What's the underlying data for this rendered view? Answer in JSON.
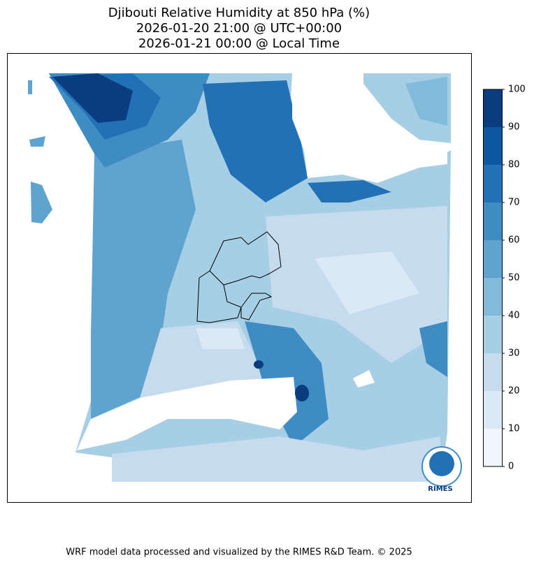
{
  "title": [
    "Djibouti Relative Humidity at 850 hPa (%)",
    "2026-01-20 21:00 @ UTC+00:00",
    "2026-01-21 00:00 @ Local Time"
  ],
  "colorbar": {
    "ticks": [
      0,
      10,
      20,
      30,
      40,
      50,
      60,
      70,
      80,
      90,
      100
    ],
    "colors": [
      "#f0f6fd",
      "#dbe9f6",
      "#c7dbef",
      "#a6cee4",
      "#82badb",
      "#5fa3d0",
      "#3f8cc5",
      "#2270b5",
      "#0d56a0",
      "#0a3d80"
    ]
  },
  "logo": "RIMES",
  "footer": "WRF model data processed and visualized by the RIMES R&D Team. © 2025"
}
